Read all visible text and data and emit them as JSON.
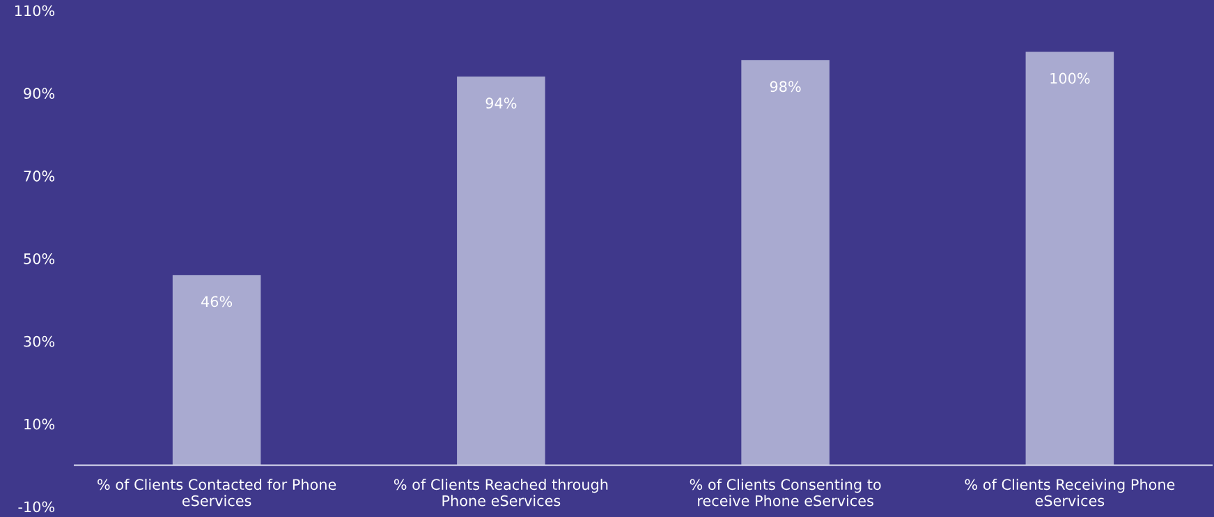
{
  "chart_data": {
    "type": "bar",
    "categories": [
      "% of Clients Contacted for Phone eServices",
      "% of Clients Reached through Phone eServices",
      "% of Clients Consenting to receive Phone eServices",
      "% of Clients Receiving Phone eServices"
    ],
    "values": [
      46,
      94,
      98,
      100
    ],
    "value_labels": [
      "46%",
      "94%",
      "98%",
      "100%"
    ],
    "color": "#a9aad0",
    "ylim": [
      -10,
      110
    ],
    "yticks": [
      {
        "value": -10,
        "label": "-10%"
      },
      {
        "value": 10,
        "label": "10%"
      },
      {
        "value": 30,
        "label": "30%"
      },
      {
        "value": 50,
        "label": "50%"
      },
      {
        "value": 70,
        "label": "70%"
      },
      {
        "value": 90,
        "label": "90%"
      },
      {
        "value": 110,
        "label": "110%"
      }
    ],
    "grid": false,
    "legend": false
  }
}
